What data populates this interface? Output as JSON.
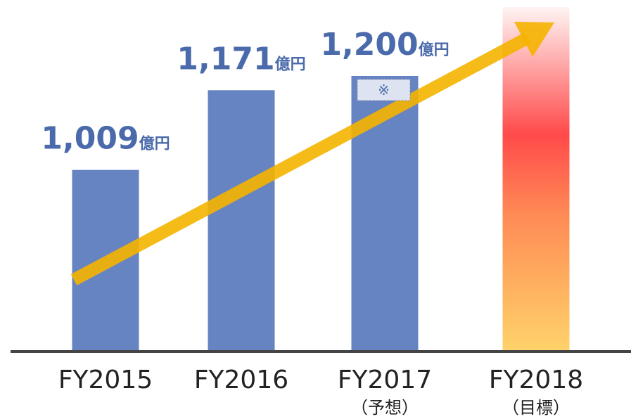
{
  "chart_data": {
    "type": "bar",
    "categories": [
      "FY2015",
      "FY2016",
      "FY2017",
      "FY2018"
    ],
    "sublabels": [
      null,
      null,
      "（予想）",
      "（目標）"
    ],
    "values": [
      1009,
      1171,
      1200,
      1340
    ],
    "value_labels": [
      "1,009",
      "1,171",
      "1,200",
      null
    ],
    "value_unit": "億円",
    "annotation": "※",
    "color": "#6683c2",
    "label_color": "#4a6aab",
    "highlight_gradient": [
      "#fff4f4",
      "#ff4a4a",
      "#ff8a55",
      "#ffd36a"
    ],
    "trend_color": "#f5b400",
    "ylim": [
      640,
      1340
    ]
  }
}
